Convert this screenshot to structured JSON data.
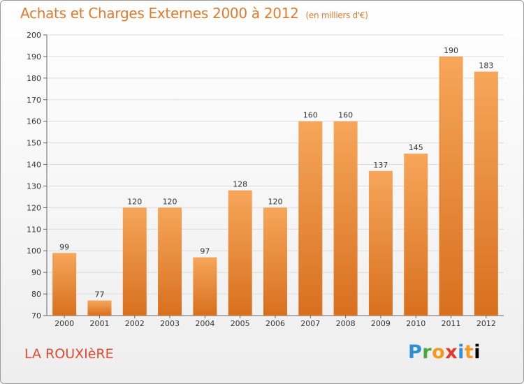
{
  "header": {
    "title": "Achats et Charges Externes 2000 à 2012",
    "subtitle": "(en milliers d'€)"
  },
  "footer": {
    "town": "LA ROUXIèRE",
    "logo": [
      "P",
      "r",
      "o",
      "x",
      "i",
      "t",
      "i"
    ]
  },
  "colors": {
    "bar_top": "#f6a65a",
    "bar_bottom": "#d8701e",
    "title": "#e07a2d",
    "town": "#e2492f",
    "grid": "#dcdcdc"
  },
  "chart_data": {
    "type": "bar",
    "title": "Achats et Charges Externes 2000 à 2012",
    "subtitle": "(en milliers d'€)",
    "xlabel": "",
    "ylabel": "",
    "categories": [
      "2000",
      "2001",
      "2002",
      "2003",
      "2004",
      "2005",
      "2006",
      "2007",
      "2008",
      "2009",
      "2010",
      "2011",
      "2012"
    ],
    "values": [
      99,
      77,
      120,
      120,
      97,
      128,
      120,
      160,
      160,
      137,
      145,
      190,
      183
    ],
    "ylim": [
      70,
      200
    ],
    "yticks": [
      70,
      80,
      90,
      100,
      110,
      120,
      130,
      140,
      150,
      160,
      170,
      180,
      190,
      200
    ],
    "grid": true
  }
}
